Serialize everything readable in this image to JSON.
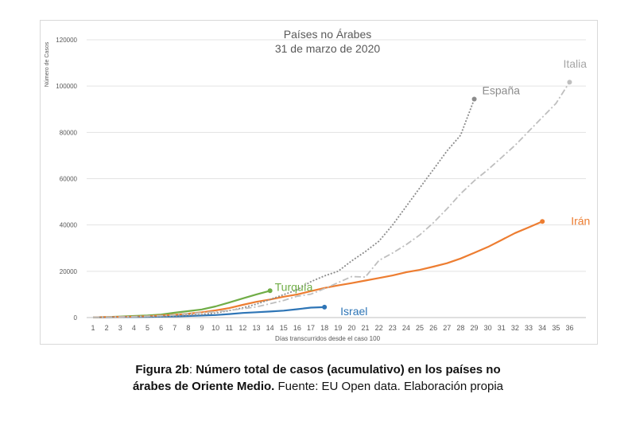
{
  "chart_data": {
    "type": "line",
    "title": "Países no Árabes",
    "subtitle": "31 de marzo de 2020",
    "xlabel": "Días transcurridos desde el caso 100",
    "ylabel": "Número de Casos",
    "xlim": [
      1,
      36
    ],
    "ylim": [
      0,
      120000
    ],
    "x_ticks": [
      1,
      2,
      3,
      4,
      5,
      6,
      7,
      8,
      9,
      10,
      11,
      12,
      13,
      14,
      15,
      16,
      17,
      18,
      19,
      20,
      21,
      22,
      23,
      24,
      25,
      26,
      27,
      28,
      29,
      30,
      31,
      32,
      33,
      34,
      35,
      36
    ],
    "y_ticks": [
      0,
      20000,
      40000,
      60000,
      80000,
      100000,
      120000
    ],
    "grid": "horizontal",
    "series": [
      {
        "name": "Israel",
        "color": "#2e75b6",
        "style": "solid",
        "x": [
          1,
          2,
          3,
          4,
          5,
          6,
          7,
          8,
          9,
          10,
          11,
          12,
          13,
          14,
          15,
          16,
          17,
          18
        ],
        "values": [
          100,
          150,
          200,
          250,
          300,
          400,
          500,
          700,
          900,
          1100,
          1500,
          2000,
          2300,
          2600,
          3000,
          3600,
          4300,
          4500
        ]
      },
      {
        "name": "Turquía",
        "color": "#70ad47",
        "style": "solid",
        "x": [
          1,
          2,
          3,
          4,
          5,
          6,
          7,
          8,
          9,
          10,
          11,
          12,
          13,
          14
        ],
        "values": [
          100,
          250,
          450,
          700,
          900,
          1300,
          2100,
          2800,
          3500,
          4800,
          6500,
          8300,
          10000,
          11600
        ]
      },
      {
        "name": "Irán",
        "color": "#ed7d31",
        "style": "solid",
        "x": [
          1,
          2,
          3,
          4,
          5,
          6,
          7,
          8,
          9,
          10,
          11,
          12,
          13,
          14,
          15,
          16,
          17,
          18,
          19,
          20,
          21,
          22,
          23,
          24,
          25,
          26,
          27,
          28,
          29,
          30,
          31,
          32,
          33,
          34
        ],
        "values": [
          100,
          200,
          300,
          400,
          600,
          900,
          1200,
          1700,
          2300,
          3100,
          4100,
          5500,
          6800,
          7800,
          9000,
          10000,
          11400,
          12800,
          13900,
          14900,
          16000,
          17100,
          18200,
          19600,
          20600,
          22000,
          23500,
          25500,
          28000,
          30500,
          33500,
          36500,
          39000,
          41500
        ]
      },
      {
        "name": "España",
        "color": "#8c8c8c",
        "style": "dotted",
        "x": [
          1,
          2,
          3,
          4,
          5,
          6,
          7,
          8,
          9,
          10,
          11,
          12,
          13,
          14,
          15,
          16,
          17,
          18,
          19,
          20,
          21,
          22,
          23,
          24,
          25,
          26,
          27,
          28,
          29
        ],
        "values": [
          100,
          150,
          200,
          300,
          400,
          500,
          700,
          1000,
          1300,
          2000,
          3000,
          4200,
          5800,
          7800,
          9900,
          12000,
          15500,
          18000,
          20000,
          24500,
          28500,
          33000,
          40000,
          48000,
          56000,
          64000,
          72000,
          78800,
          94400
        ]
      },
      {
        "name": "Italia",
        "color": "#bfbfbf",
        "style": "dashdot",
        "x": [
          1,
          2,
          3,
          4,
          5,
          6,
          7,
          8,
          9,
          10,
          11,
          12,
          13,
          14,
          15,
          16,
          17,
          18,
          19,
          20,
          21,
          22,
          23,
          24,
          25,
          26,
          27,
          28,
          29,
          30,
          31,
          32,
          33,
          34,
          35,
          36
        ],
        "values": [
          100,
          200,
          300,
          400,
          600,
          800,
          1100,
          1700,
          2100,
          2500,
          3100,
          3800,
          4600,
          6000,
          7400,
          9200,
          10100,
          12500,
          15100,
          17700,
          17500,
          24700,
          27900,
          31500,
          35700,
          41000,
          47000,
          53500,
          59100,
          63900,
          69100,
          74400,
          80500,
          86500,
          92500,
          101700
        ]
      }
    ],
    "end_labels": [
      {
        "name": "Israel",
        "text": "Israel",
        "color": "#2e75b6"
      },
      {
        "name": "Turquía",
        "text": "Turquía",
        "color": "#70ad47"
      },
      {
        "name": "Irán",
        "text": "Irán",
        "color": "#ed7d31"
      },
      {
        "name": "España",
        "text": "España",
        "color": "#8c8c8c"
      },
      {
        "name": "Italia",
        "text": "Italia",
        "color": "#a6a6a6"
      }
    ]
  },
  "caption": {
    "line1_bold_a": "Figura 2b",
    "line1_rest_a": ": ",
    "line1_bold_b": "Número total de casos (acumulativo) en los países no",
    "line2_bold": "árabes de Oriente Medio.",
    "line2_rest": " Fuente: EU Open data. Elaboración propia"
  }
}
